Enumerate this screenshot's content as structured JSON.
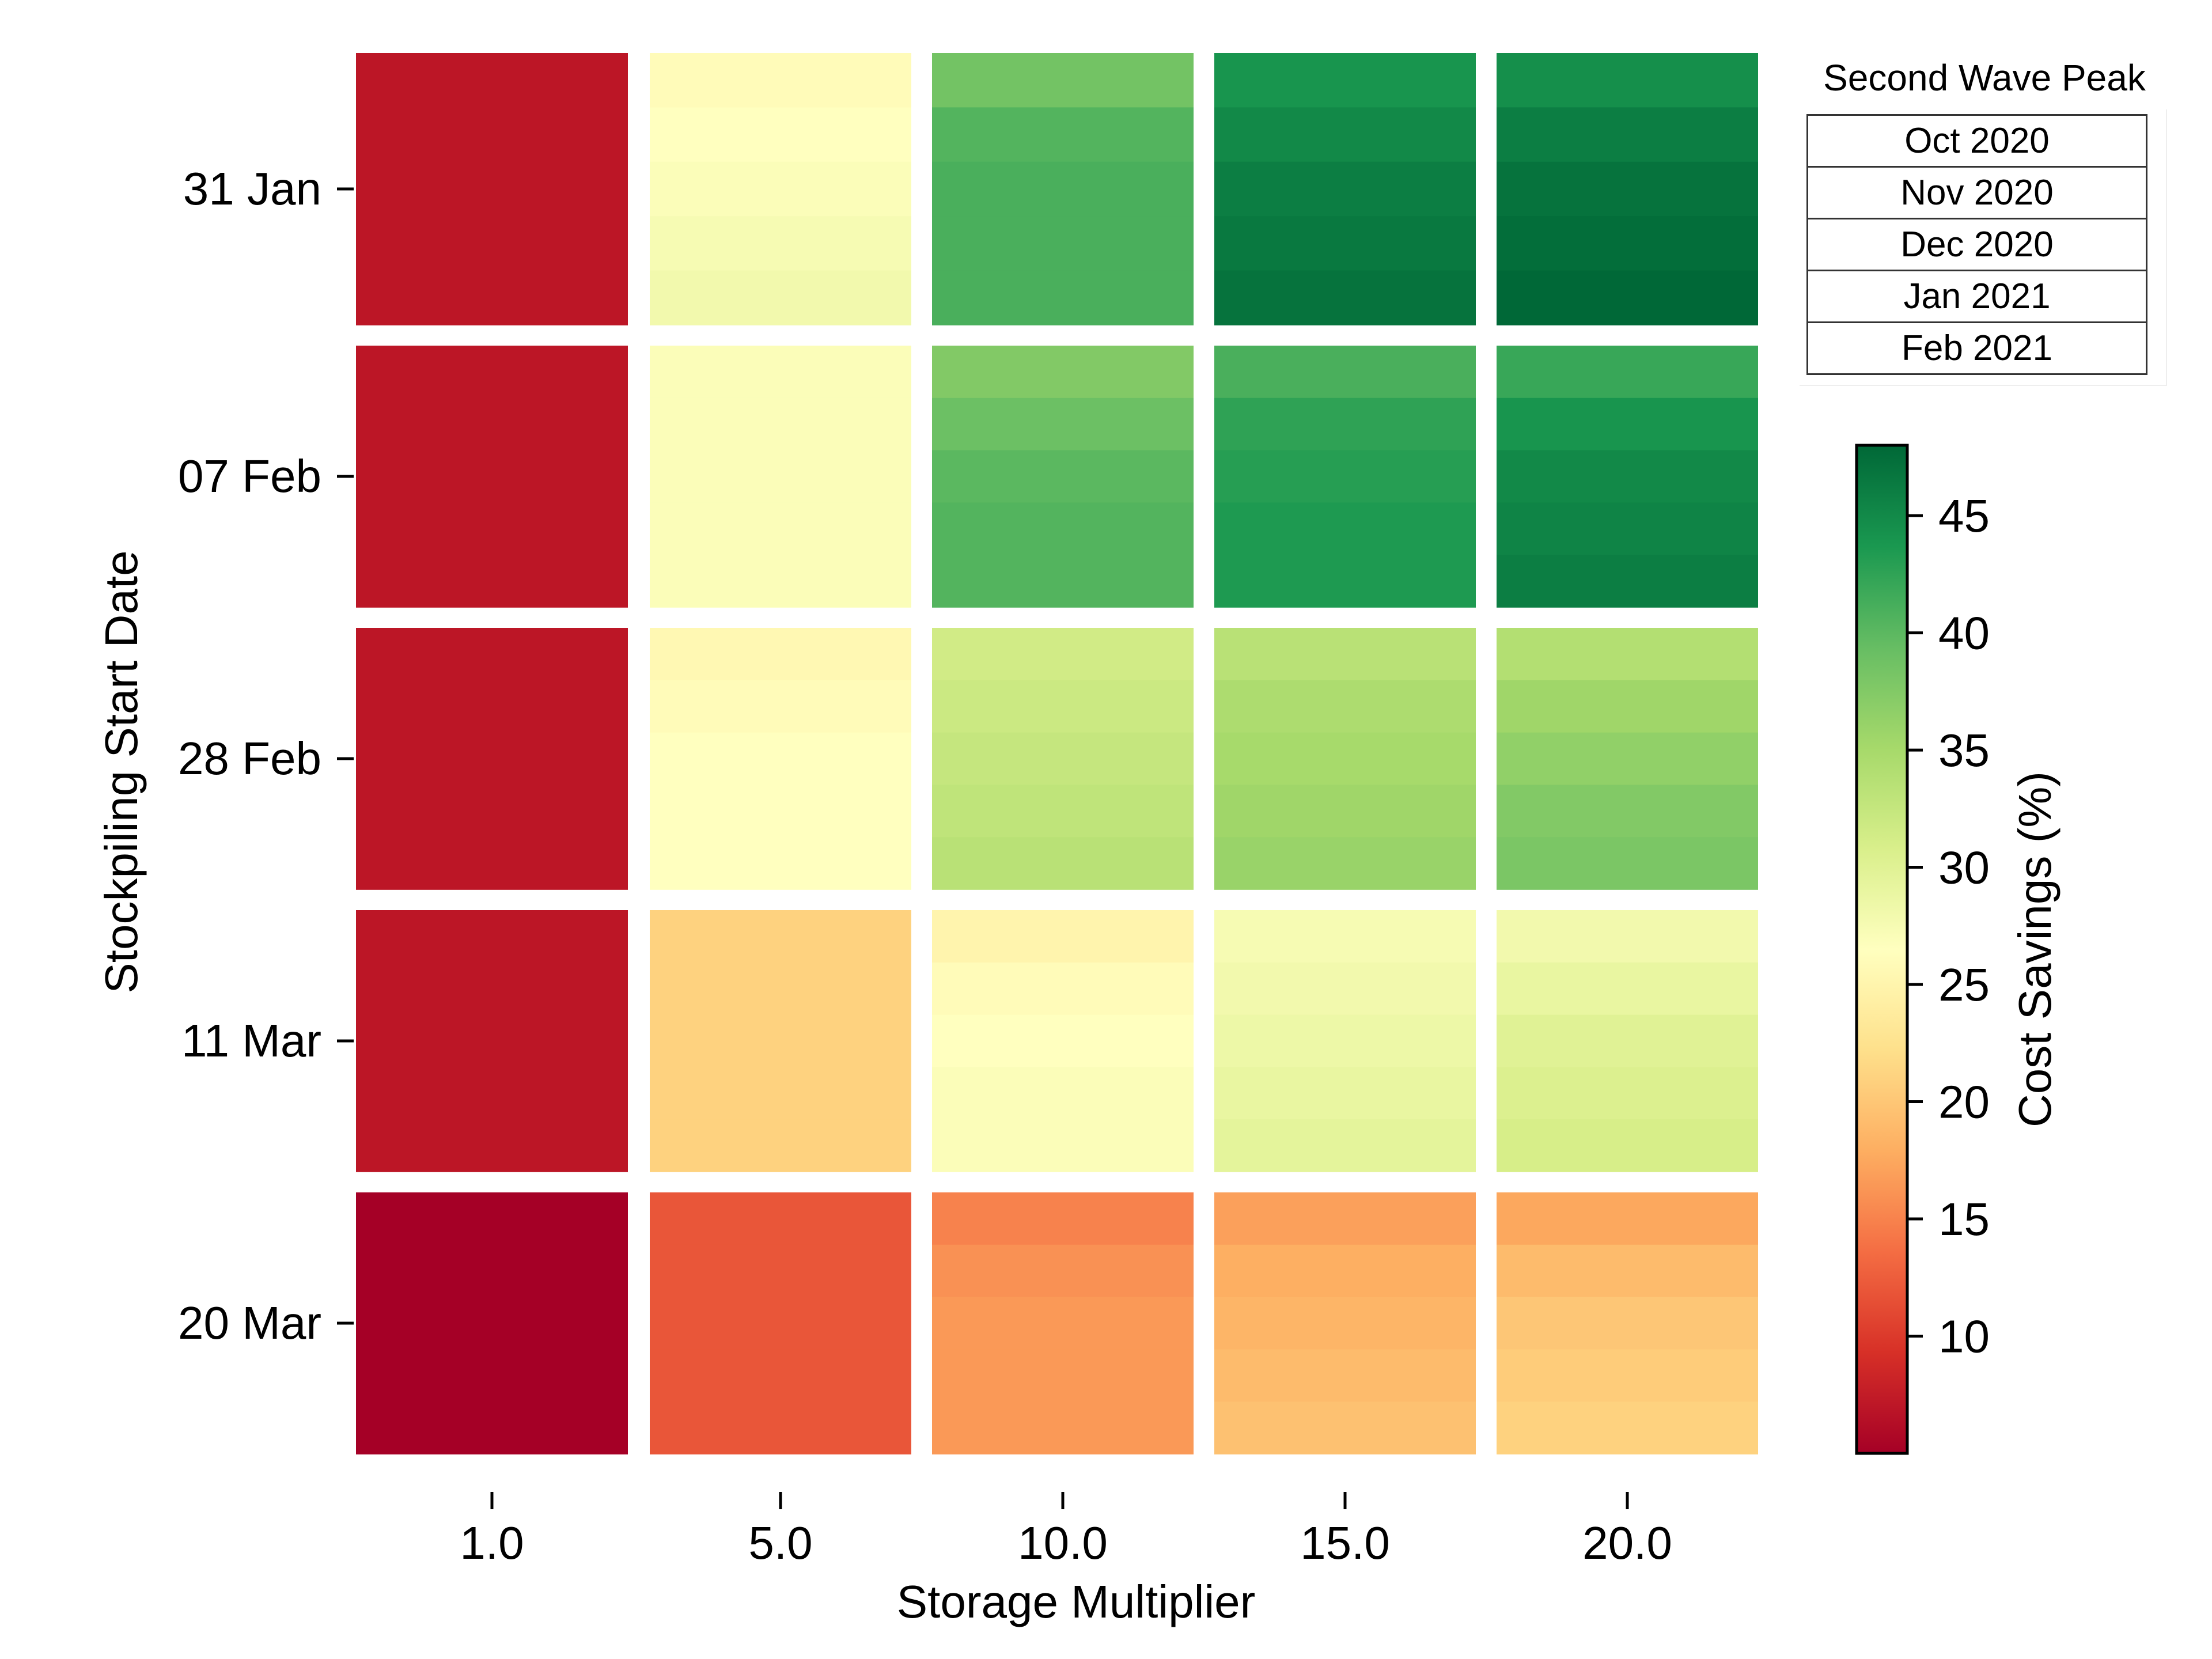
{
  "chart_data": {
    "type": "heatmap",
    "xlabel": "Storage Multiplier",
    "ylabel": "Stockpiling Start Date",
    "x_tick_labels": [
      "1.0",
      "5.0",
      "10.0",
      "15.0",
      "20.0"
    ],
    "y_tick_labels": [
      "31 Jan",
      "07 Feb",
      "28 Feb",
      "11 Mar",
      "20 Mar"
    ],
    "sub_row_series": [
      "Oct 2020",
      "Nov 2020",
      "Dec 2020",
      "Jan 2021",
      "Feb 2021"
    ],
    "values": [
      [
        [
          7,
          7,
          7,
          7,
          7
        ],
        [
          26,
          26.5,
          27,
          27.5,
          28
        ],
        [
          38.5,
          40.5,
          41,
          41,
          41
        ],
        [
          44,
          45,
          46,
          46.5,
          47
        ],
        [
          44.5,
          46,
          47,
          47.5,
          48
        ]
      ],
      [
        [
          7,
          7,
          7,
          7,
          7
        ],
        [
          27,
          27,
          27,
          27,
          27
        ],
        [
          37.5,
          39,
          40,
          40.5,
          40.5
        ],
        [
          41,
          42.5,
          43,
          43.5,
          43.5
        ],
        [
          42,
          44,
          45,
          45.5,
          46
        ]
      ],
      [
        [
          7,
          7,
          7,
          7,
          7
        ],
        [
          25.5,
          26,
          26.5,
          26.5,
          26.5
        ],
        [
          31.5,
          32,
          32.5,
          33,
          33.5
        ],
        [
          33.5,
          34.5,
          35,
          35.5,
          36
        ],
        [
          34,
          35.5,
          36.5,
          37.5,
          38
        ]
      ],
      [
        [
          7,
          7,
          7,
          7,
          7
        ],
        [
          21,
          21,
          21,
          21,
          21
        ],
        [
          25,
          26,
          26.5,
          27,
          27
        ],
        [
          27.5,
          28,
          28.5,
          29,
          29.5
        ],
        [
          28,
          29,
          30,
          30.5,
          31
        ]
      ],
      [
        [
          5,
          5,
          5,
          5,
          5
        ],
        [
          12,
          12,
          12,
          12,
          12
        ],
        [
          15,
          16,
          16.5,
          16.5,
          16.5
        ],
        [
          17,
          18,
          18.5,
          19,
          19.5
        ],
        [
          17.5,
          19,
          20,
          20.5,
          21
        ]
      ]
    ],
    "colorbar": {
      "label": "Cost Savings (%)",
      "range": [
        5,
        48
      ],
      "ticks": [
        10,
        15,
        20,
        25,
        30,
        35,
        40,
        45
      ],
      "colormap": "RdYlGn"
    },
    "legend": {
      "title": "Second Wave Peak",
      "entries": [
        "Oct 2020",
        "Nov 2020",
        "Dec 2020",
        "Jan 2021",
        "Feb 2021"
      ],
      "placement": "top-right"
    }
  }
}
